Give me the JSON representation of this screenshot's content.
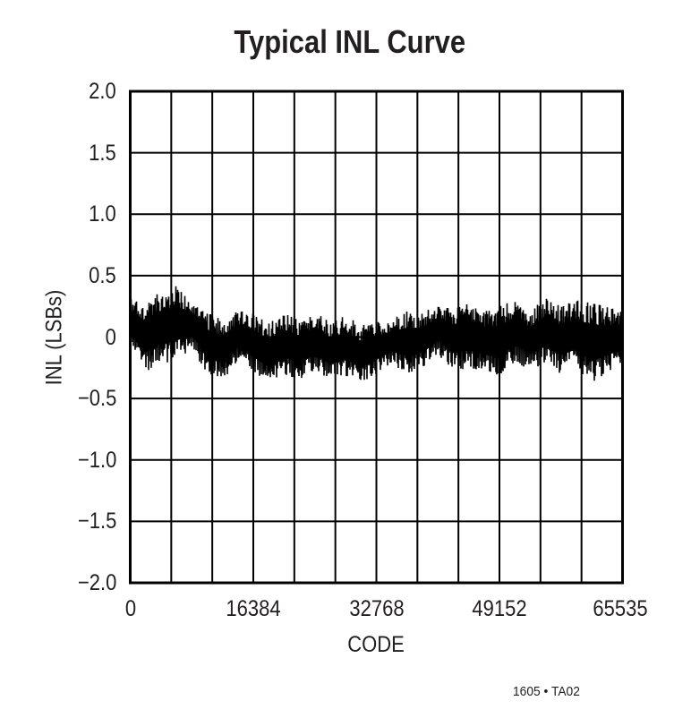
{
  "chart_data": {
    "type": "line",
    "title": "Typical INL Curve",
    "xlabel": "CODE",
    "ylabel": "INL (LSBs)",
    "xlim": [
      0,
      65535
    ],
    "ylim": [
      -2.0,
      2.0
    ],
    "x_ticks": [
      0,
      16384,
      32768,
      49152,
      65535
    ],
    "x_tick_labels": [
      "0",
      "16384",
      "32768",
      "49152",
      "65535"
    ],
    "y_ticks": [
      2.0,
      1.5,
      1.0,
      0.5,
      0,
      -0.5,
      -1.0,
      -1.5,
      -2.0
    ],
    "y_tick_labels": [
      "2.0",
      "1.5",
      "1.0",
      "0.5",
      "0",
      "−0.5",
      "−1.0",
      "−1.5",
      "−2.0"
    ],
    "grid": true,
    "grid_x_divisions": 12,
    "grid_y_divisions": 8,
    "legend": null,
    "annotation": "1605 • TA02",
    "series": [
      {
        "name": "INL",
        "color": "#000000",
        "description": "Dense noisy INL trace centered near 0 LSB; envelope (upper/lower) sampled across code range",
        "x": [
          0,
          2048,
          4096,
          6144,
          8192,
          10240,
          12288,
          14336,
          16384,
          18432,
          20480,
          22528,
          24576,
          26624,
          28672,
          30720,
          32768,
          34816,
          36864,
          38912,
          40960,
          43008,
          45056,
          47104,
          49152,
          51200,
          53248,
          55296,
          57344,
          59392,
          61440,
          63488,
          65535
        ],
        "upper": [
          0.35,
          0.28,
          0.38,
          0.42,
          0.32,
          0.2,
          0.15,
          0.22,
          0.2,
          0.12,
          0.2,
          0.15,
          0.22,
          0.12,
          0.18,
          0.1,
          0.12,
          0.15,
          0.22,
          0.2,
          0.28,
          0.25,
          0.28,
          0.22,
          0.25,
          0.3,
          0.22,
          0.32,
          0.25,
          0.3,
          0.28,
          0.25,
          0.22
        ],
        "lower": [
          -0.1,
          -0.28,
          -0.22,
          -0.2,
          -0.1,
          -0.3,
          -0.35,
          -0.2,
          -0.3,
          -0.38,
          -0.3,
          -0.35,
          -0.28,
          -0.35,
          -0.32,
          -0.38,
          -0.3,
          -0.22,
          -0.3,
          -0.25,
          -0.15,
          -0.28,
          -0.25,
          -0.28,
          -0.32,
          -0.2,
          -0.28,
          -0.22,
          -0.3,
          -0.25,
          -0.38,
          -0.3,
          -0.22
        ]
      }
    ]
  },
  "colors": {
    "ink": "#000000",
    "text": "#231f20",
    "background": "#ffffff",
    "grid": "#000000"
  }
}
